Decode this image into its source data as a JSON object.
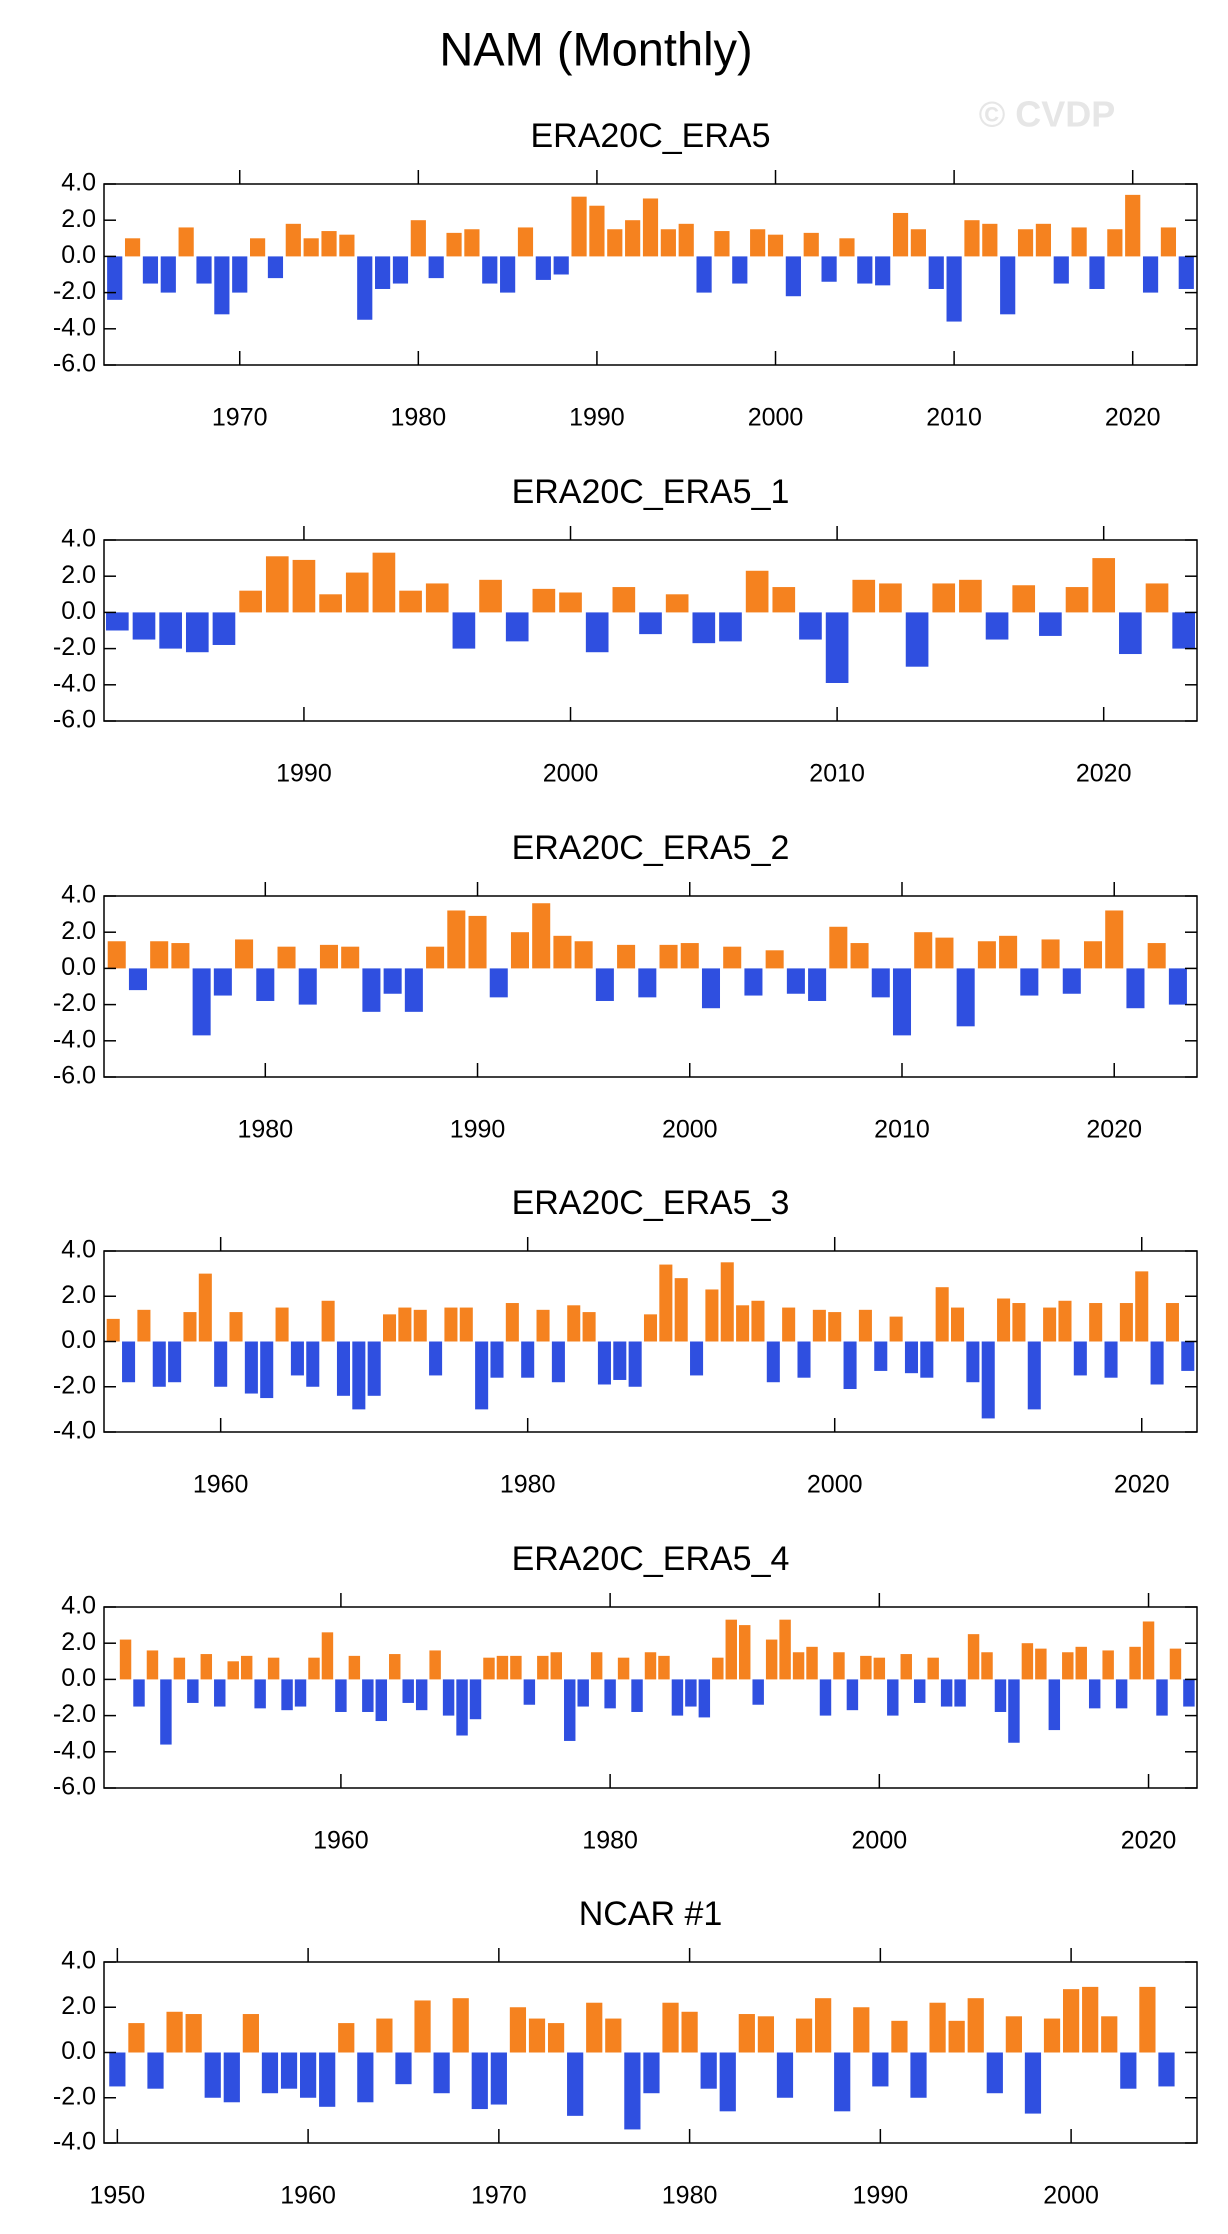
{
  "title": "NAM (Monthly)",
  "watermark": "© CVDP",
  "chart_data": [
    {
      "type": "bar",
      "title": "ERA20C_ERA5",
      "positive_color": "#f5821f",
      "negative_color": "#2f4fe0",
      "x": [
        1963,
        1964,
        1965,
        1966,
        1967,
        1968,
        1969,
        1970,
        1971,
        1972,
        1973,
        1974,
        1975,
        1976,
        1977,
        1978,
        1979,
        1980,
        1981,
        1982,
        1983,
        1984,
        1985,
        1986,
        1987,
        1988,
        1989,
        1990,
        1991,
        1992,
        1993,
        1994,
        1995,
        1996,
        1997,
        1998,
        1999,
        2000,
        2001,
        2002,
        2003,
        2004,
        2005,
        2006,
        2007,
        2008,
        2009,
        2010,
        2011,
        2012,
        2013,
        2014,
        2015,
        2016,
        2017,
        2018,
        2019,
        2020,
        2021,
        2022,
        2023
      ],
      "values": [
        -2.4,
        1.0,
        -1.5,
        -2.0,
        1.6,
        -1.5,
        -3.2,
        -2.0,
        1.0,
        -1.2,
        1.8,
        1.0,
        1.4,
        1.2,
        -3.5,
        -1.8,
        -1.5,
        2.0,
        -1.2,
        1.3,
        1.5,
        -1.5,
        -2.0,
        1.6,
        -1.3,
        -1.0,
        3.3,
        2.8,
        1.5,
        2.0,
        3.2,
        1.5,
        1.8,
        -2.0,
        1.4,
        -1.5,
        1.5,
        1.2,
        -2.2,
        1.3,
        -1.4,
        1.0,
        -1.5,
        -1.6,
        2.4,
        1.5,
        -1.8,
        -3.6,
        2.0,
        1.8,
        -3.2,
        1.5,
        1.8,
        -1.5,
        1.6,
        -1.8,
        1.5,
        3.4,
        -2.0,
        1.6,
        -1.8
      ],
      "xlim": [
        1962.4,
        2023.6
      ],
      "xticks": [
        1970,
        1980,
        1990,
        2000,
        2010,
        2020
      ],
      "ylim": [
        -6,
        4
      ],
      "yticks": [
        {
          "value": -6,
          "label": "-6.0"
        },
        {
          "value": -4,
          "label": "-4.0"
        },
        {
          "value": -2,
          "label": "-2.0"
        },
        {
          "value": 0,
          "label": "0.0"
        },
        {
          "value": 2,
          "label": "2.0"
        },
        {
          "value": 4,
          "label": "4.0"
        }
      ]
    },
    {
      "type": "bar",
      "title": "ERA20C_ERA5_1",
      "positive_color": "#f5821f",
      "negative_color": "#2f4fe0",
      "x": [
        1983,
        1984,
        1985,
        1986,
        1987,
        1988,
        1989,
        1990,
        1991,
        1992,
        1993,
        1994,
        1995,
        1996,
        1997,
        1998,
        1999,
        2000,
        2001,
        2002,
        2003,
        2004,
        2005,
        2006,
        2007,
        2008,
        2009,
        2010,
        2011,
        2012,
        2013,
        2014,
        2015,
        2016,
        2017,
        2018,
        2019,
        2020,
        2021,
        2022,
        2023
      ],
      "values": [
        -1.0,
        -1.5,
        -2.0,
        -2.2,
        -1.8,
        1.2,
        3.1,
        2.9,
        1.0,
        2.2,
        3.3,
        1.2,
        1.6,
        -2.0,
        1.8,
        -1.6,
        1.3,
        1.1,
        -2.2,
        1.4,
        -1.2,
        1.0,
        -1.7,
        -1.6,
        2.3,
        1.4,
        -1.5,
        -3.9,
        1.8,
        1.6,
        -3.0,
        1.6,
        1.8,
        -1.5,
        1.5,
        -1.3,
        1.4,
        3.0,
        -2.3,
        1.6,
        -2.0
      ],
      "xlim": [
        1982.5,
        2023.5
      ],
      "xticks": [
        1990,
        2000,
        2010,
        2020
      ],
      "ylim": [
        -6,
        4
      ],
      "yticks": [
        {
          "value": -6,
          "label": "-6.0"
        },
        {
          "value": -4,
          "label": "-4.0"
        },
        {
          "value": -2,
          "label": "-2.0"
        },
        {
          "value": 0,
          "label": "0.0"
        },
        {
          "value": 2,
          "label": "2.0"
        },
        {
          "value": 4,
          "label": "4.0"
        }
      ]
    },
    {
      "type": "bar",
      "title": "ERA20C_ERA5_2",
      "positive_color": "#f5821f",
      "negative_color": "#2f4fe0",
      "x": [
        1973,
        1974,
        1975,
        1976,
        1977,
        1978,
        1979,
        1980,
        1981,
        1982,
        1983,
        1984,
        1985,
        1986,
        1987,
        1988,
        1989,
        1990,
        1991,
        1992,
        1993,
        1994,
        1995,
        1996,
        1997,
        1998,
        1999,
        2000,
        2001,
        2002,
        2003,
        2004,
        2005,
        2006,
        2007,
        2008,
        2009,
        2010,
        2011,
        2012,
        2013,
        2014,
        2015,
        2016,
        2017,
        2018,
        2019,
        2020,
        2021,
        2022,
        2023
      ],
      "values": [
        1.5,
        -1.2,
        1.5,
        1.4,
        -3.7,
        -1.5,
        1.6,
        -1.8,
        1.2,
        -2.0,
        1.3,
        1.2,
        -2.4,
        -1.4,
        -2.4,
        1.2,
        3.2,
        2.9,
        -1.6,
        2.0,
        3.6,
        1.8,
        1.5,
        -1.8,
        1.3,
        -1.6,
        1.3,
        1.4,
        -2.2,
        1.2,
        -1.5,
        1.0,
        -1.4,
        -1.8,
        2.3,
        1.4,
        -1.6,
        -3.7,
        2.0,
        1.7,
        -3.2,
        1.5,
        1.8,
        -1.5,
        1.6,
        -1.4,
        1.5,
        3.2,
        -2.2,
        1.4,
        -2.0
      ],
      "xlim": [
        1972.4,
        2023.9
      ],
      "xticks": [
        1980,
        1990,
        2000,
        2010,
        2020
      ],
      "ylim": [
        -6,
        4
      ],
      "yticks": [
        {
          "value": -6,
          "label": "-6.0"
        },
        {
          "value": -4,
          "label": "-4.0"
        },
        {
          "value": -2,
          "label": "-2.0"
        },
        {
          "value": 0,
          "label": "0.0"
        },
        {
          "value": 2,
          "label": "2.0"
        },
        {
          "value": 4,
          "label": "4.0"
        }
      ]
    },
    {
      "type": "bar",
      "title": "ERA20C_ERA5_3",
      "positive_color": "#f5821f",
      "negative_color": "#2f4fe0",
      "x": [
        1953,
        1954,
        1955,
        1956,
        1957,
        1958,
        1959,
        1960,
        1961,
        1962,
        1963,
        1964,
        1965,
        1966,
        1967,
        1968,
        1969,
        1970,
        1971,
        1972,
        1973,
        1974,
        1975,
        1976,
        1977,
        1978,
        1979,
        1980,
        1981,
        1982,
        1983,
        1984,
        1985,
        1986,
        1987,
        1988,
        1989,
        1990,
        1991,
        1992,
        1993,
        1994,
        1995,
        1996,
        1997,
        1998,
        1999,
        2000,
        2001,
        2002,
        2003,
        2004,
        2005,
        2006,
        2007,
        2008,
        2009,
        2010,
        2011,
        2012,
        2013,
        2014,
        2015,
        2016,
        2017,
        2018,
        2019,
        2020,
        2021,
        2022,
        2023
      ],
      "values": [
        1.0,
        -1.8,
        1.4,
        -2.0,
        -1.8,
        1.3,
        3.0,
        -2.0,
        1.3,
        -2.3,
        -2.5,
        1.5,
        -1.5,
        -2.0,
        1.8,
        -2.4,
        -3.0,
        -2.4,
        1.2,
        1.5,
        1.4,
        -1.5,
        1.5,
        1.5,
        -3.0,
        -1.6,
        1.7,
        -1.6,
        1.4,
        -1.8,
        1.6,
        1.3,
        -1.9,
        -1.7,
        -2.0,
        1.2,
        3.4,
        2.8,
        -1.5,
        2.3,
        3.5,
        1.6,
        1.8,
        -1.8,
        1.5,
        -1.6,
        1.4,
        1.3,
        -2.1,
        1.4,
        -1.3,
        1.1,
        -1.4,
        -1.6,
        2.4,
        1.5,
        -1.8,
        -3.4,
        1.9,
        1.7,
        -3.0,
        1.5,
        1.8,
        -1.5,
        1.7,
        -1.6,
        1.7,
        3.1,
        -1.9,
        1.7,
        -1.3
      ],
      "xlim": [
        1952.4,
        2023.6
      ],
      "xticks": [
        1960,
        1980,
        2000,
        2020
      ],
      "ylim": [
        -4,
        4
      ],
      "yticks": [
        {
          "value": -4,
          "label": "-4.0"
        },
        {
          "value": -2,
          "label": "-2.0"
        },
        {
          "value": 0,
          "label": "0.0"
        },
        {
          "value": 2,
          "label": "2.0"
        },
        {
          "value": 4,
          "label": "4.0"
        }
      ]
    },
    {
      "type": "bar",
      "title": "ERA20C_ERA5_4",
      "positive_color": "#f5821f",
      "negative_color": "#2f4fe0",
      "x": [
        1944,
        1945,
        1946,
        1947,
        1948,
        1949,
        1950,
        1951,
        1952,
        1953,
        1954,
        1955,
        1956,
        1957,
        1958,
        1959,
        1960,
        1961,
        1962,
        1963,
        1964,
        1965,
        1966,
        1967,
        1968,
        1969,
        1970,
        1971,
        1972,
        1973,
        1974,
        1975,
        1976,
        1977,
        1978,
        1979,
        1980,
        1981,
        1982,
        1983,
        1984,
        1985,
        1986,
        1987,
        1988,
        1989,
        1990,
        1991,
        1992,
        1993,
        1994,
        1995,
        1996,
        1997,
        1998,
        1999,
        2000,
        2001,
        2002,
        2003,
        2004,
        2005,
        2006,
        2007,
        2008,
        2009,
        2010,
        2011,
        2012,
        2013,
        2014,
        2015,
        2016,
        2017,
        2018,
        2019,
        2020,
        2021,
        2022,
        2023
      ],
      "values": [
        2.2,
        -1.5,
        1.6,
        -3.6,
        1.2,
        -1.3,
        1.4,
        -1.5,
        1.0,
        1.3,
        -1.6,
        1.2,
        -1.7,
        -1.5,
        1.2,
        2.6,
        -1.8,
        1.3,
        -1.8,
        -2.3,
        1.4,
        -1.3,
        -1.7,
        1.6,
        -2.0,
        -3.1,
        -2.2,
        1.2,
        1.3,
        1.3,
        -1.4,
        1.3,
        1.5,
        -3.4,
        -1.5,
        1.5,
        -1.6,
        1.2,
        -1.8,
        1.5,
        1.3,
        -2.0,
        -1.5,
        -2.1,
        1.2,
        3.3,
        3.0,
        -1.4,
        2.2,
        3.3,
        1.5,
        1.8,
        -2.0,
        1.5,
        -1.7,
        1.3,
        1.2,
        -2.0,
        1.4,
        -1.3,
        1.2,
        -1.5,
        -1.5,
        2.5,
        1.5,
        -1.8,
        -3.5,
        2.0,
        1.7,
        -2.8,
        1.5,
        1.8,
        -1.6,
        1.6,
        -1.6,
        1.8,
        3.2,
        -2.0,
        1.7,
        -1.5
      ],
      "xlim": [
        1942.4,
        2023.6
      ],
      "xticks": [
        1960,
        1980,
        2000,
        2020
      ],
      "ylim": [
        -6,
        4
      ],
      "yticks": [
        {
          "value": -6,
          "label": "-6.0"
        },
        {
          "value": -4,
          "label": "-4.0"
        },
        {
          "value": -2,
          "label": "-2.0"
        },
        {
          "value": 0,
          "label": "0.0"
        },
        {
          "value": 2,
          "label": "2.0"
        },
        {
          "value": 4,
          "label": "4.0"
        }
      ]
    },
    {
      "type": "bar",
      "title": "NCAR #1",
      "positive_color": "#f5821f",
      "negative_color": "#2f4fe0",
      "x": [
        1950,
        1951,
        1952,
        1953,
        1954,
        1955,
        1956,
        1957,
        1958,
        1959,
        1960,
        1961,
        1962,
        1963,
        1964,
        1965,
        1966,
        1967,
        1968,
        1969,
        1970,
        1971,
        1972,
        1973,
        1974,
        1975,
        1976,
        1977,
        1978,
        1979,
        1980,
        1981,
        1982,
        1983,
        1984,
        1985,
        1986,
        1987,
        1988,
        1989,
        1990,
        1991,
        1992,
        1993,
        1994,
        1995,
        1996,
        1997,
        1998,
        1999,
        2000,
        2001,
        2002,
        2003,
        2004,
        2005
      ],
      "values": [
        -1.5,
        1.3,
        -1.6,
        1.8,
        1.7,
        -2.0,
        -2.2,
        1.7,
        -1.8,
        -1.6,
        -2.0,
        -2.4,
        1.3,
        -2.2,
        1.5,
        -1.4,
        2.3,
        -1.8,
        2.4,
        -2.5,
        -2.3,
        2.0,
        1.5,
        1.3,
        -2.8,
        2.2,
        1.5,
        -3.4,
        -1.8,
        2.2,
        1.8,
        -1.6,
        -2.6,
        1.7,
        1.6,
        -2.0,
        1.5,
        2.4,
        -2.6,
        2.0,
        -1.5,
        1.4,
        -2.0,
        2.2,
        1.4,
        2.4,
        -1.8,
        1.6,
        -2.7,
        1.5,
        2.8,
        2.9,
        1.6,
        -1.6,
        2.9,
        -1.5
      ],
      "xlim": [
        1949.3,
        2006.6
      ],
      "xticks": [
        1950,
        1960,
        1970,
        1980,
        1990,
        2000
      ],
      "ylim": [
        -4,
        4
      ],
      "yticks": [
        {
          "value": -4,
          "label": "-4.0"
        },
        {
          "value": -2,
          "label": "-2.0"
        },
        {
          "value": 0,
          "label": "0.0"
        },
        {
          "value": 2,
          "label": "2.0"
        },
        {
          "value": 4,
          "label": "4.0"
        }
      ]
    }
  ]
}
